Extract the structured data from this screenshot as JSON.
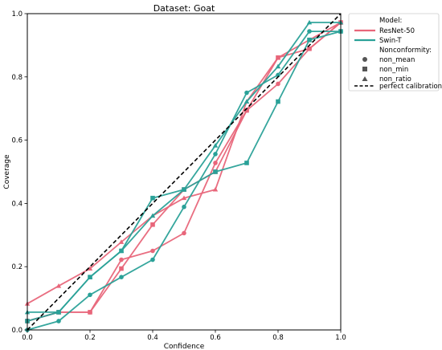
{
  "chart_data": {
    "type": "line",
    "title": "Dataset: Goat",
    "xlabel": "Confidence",
    "ylabel": "Coverage",
    "xlim": [
      0,
      1
    ],
    "ylim": [
      0,
      1
    ],
    "xticks": [
      "0.0",
      "0.2",
      "0.4",
      "0.6",
      "0.8",
      "1.0"
    ],
    "yticks": [
      "0.0",
      "0.2",
      "0.4",
      "0.6",
      "0.8",
      "1.0"
    ],
    "grid": false,
    "legend": {
      "placement": "outside-top-right",
      "model_title": "Model:",
      "models": [
        {
          "name": "ResNet-50",
          "color": "#e8667a"
        },
        {
          "name": "Swin-T",
          "color": "#2aa198"
        }
      ],
      "nonconformity_title": "Nonconformity:",
      "nonconformity": [
        {
          "name": "non_mean",
          "marker": "circle"
        },
        {
          "name": "non_min",
          "marker": "square"
        },
        {
          "name": "non_ratio",
          "marker": "triangle"
        }
      ],
      "reference": {
        "name": "perfect calibration",
        "style": "dashed"
      }
    },
    "series": [
      {
        "model": "ResNet-50",
        "nonconformity": "non_mean",
        "marker": "circle",
        "color": "#e8667a",
        "x": [
          0.0,
          0.1,
          0.2,
          0.3,
          0.4,
          0.5,
          0.6,
          0.7,
          0.8,
          0.9,
          1.0
        ],
        "y": [
          0.028,
          0.056,
          0.056,
          0.222,
          0.25,
          0.306,
          0.528,
          0.694,
          0.778,
          0.889,
          0.972
        ]
      },
      {
        "model": "ResNet-50",
        "nonconformity": "non_min",
        "marker": "square",
        "color": "#e8667a",
        "x": [
          0.0,
          0.1,
          0.2,
          0.3,
          0.4,
          0.5,
          0.6,
          0.7,
          0.8,
          0.9,
          1.0
        ],
        "y": [
          0.028,
          0.056,
          0.056,
          0.194,
          0.333,
          0.444,
          0.5,
          0.694,
          0.861,
          0.889,
          0.972
        ]
      },
      {
        "model": "ResNet-50",
        "nonconformity": "non_ratio",
        "marker": "triangle",
        "color": "#e8667a",
        "x": [
          0.0,
          0.1,
          0.2,
          0.3,
          0.4,
          0.5,
          0.6,
          0.7,
          0.8,
          0.9,
          1.0
        ],
        "y": [
          0.083,
          0.139,
          0.194,
          0.278,
          0.361,
          0.417,
          0.444,
          0.722,
          0.861,
          0.917,
          0.972
        ]
      },
      {
        "model": "Swin-T",
        "nonconformity": "non_mean",
        "marker": "circle",
        "color": "#2aa198",
        "x": [
          0.0,
          0.1,
          0.2,
          0.3,
          0.4,
          0.5,
          0.6,
          0.7,
          0.8,
          0.9,
          1.0
        ],
        "y": [
          0.0,
          0.028,
          0.111,
          0.167,
          0.222,
          0.389,
          0.556,
          0.75,
          0.806,
          0.944,
          0.944
        ]
      },
      {
        "model": "Swin-T",
        "nonconformity": "non_min",
        "marker": "square",
        "color": "#2aa198",
        "x": [
          0.0,
          0.1,
          0.2,
          0.3,
          0.4,
          0.5,
          0.6,
          0.7,
          0.8,
          0.9,
          1.0
        ],
        "y": [
          0.028,
          0.056,
          0.167,
          0.25,
          0.417,
          0.444,
          0.5,
          0.528,
          0.722,
          0.917,
          0.944
        ]
      },
      {
        "model": "Swin-T",
        "nonconformity": "non_ratio",
        "marker": "triangle",
        "color": "#2aa198",
        "x": [
          0.0,
          0.1,
          0.2,
          0.3,
          0.4,
          0.5,
          0.6,
          0.7,
          0.8,
          0.9,
          1.0
        ],
        "y": [
          0.056,
          0.056,
          0.167,
          0.25,
          0.361,
          0.444,
          0.583,
          0.722,
          0.833,
          0.972,
          0.972
        ]
      }
    ],
    "reference_line": {
      "name": "perfect calibration",
      "x": [
        0,
        1
      ],
      "y": [
        0,
        1
      ]
    }
  }
}
